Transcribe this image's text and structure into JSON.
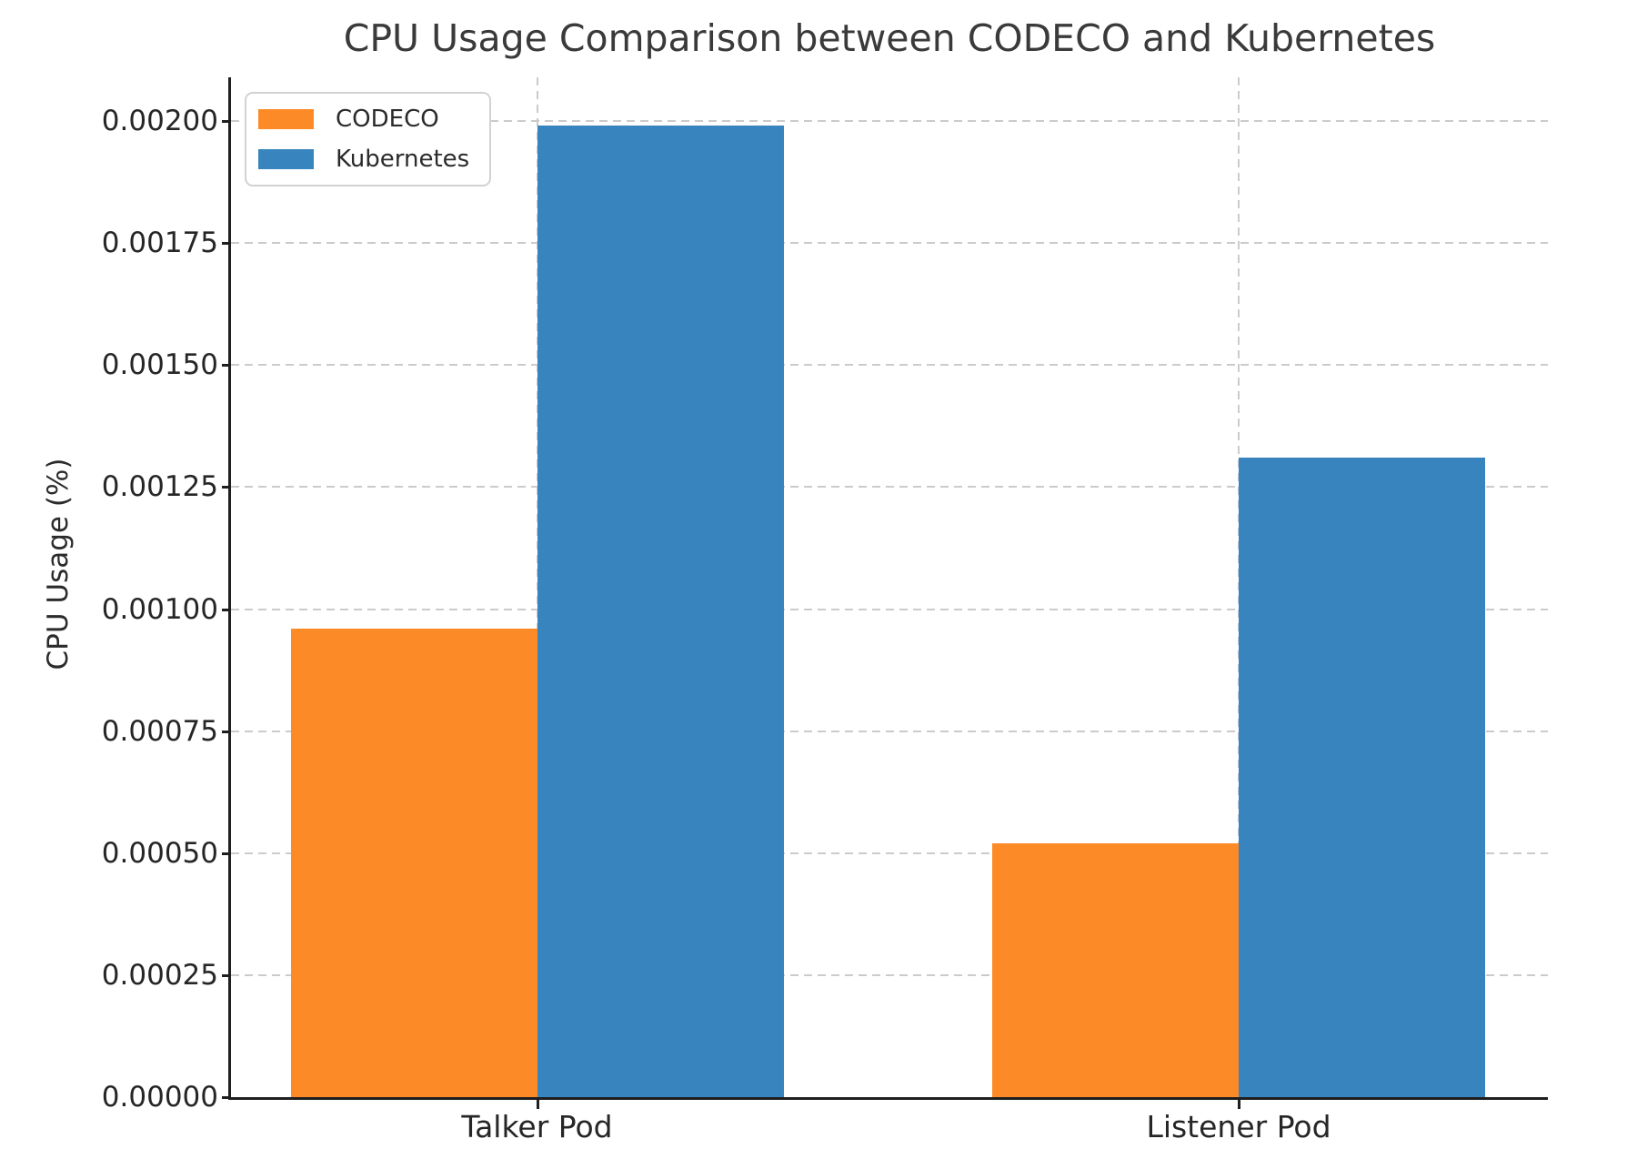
{
  "figure": {
    "background": "#ffffff"
  },
  "chart_data": {
    "type": "bar",
    "title": "CPU Usage Comparison between CODECO and Kubernetes",
    "xlabel": "",
    "ylabel": "CPU Usage (%)",
    "categories": [
      "Talker Pod",
      "Listener Pod"
    ],
    "series": [
      {
        "name": "CODECO",
        "color": "#fc8b27",
        "values": [
          0.00096,
          0.00052
        ]
      },
      {
        "name": "Kubernetes",
        "color": "#3784be",
        "values": [
          0.00199,
          0.00131
        ]
      }
    ],
    "ylim": [
      0,
      0.0020895
    ],
    "yticks": [
      0.0,
      0.00025,
      0.0005,
      0.00075,
      0.001,
      0.00125,
      0.0015,
      0.00175,
      0.002
    ],
    "ytick_labels": [
      "0.00000",
      "0.00025",
      "0.00050",
      "0.00075",
      "0.00100",
      "0.00125",
      "0.00150",
      "0.00175",
      "0.00200"
    ],
    "grid": true,
    "grid_style": "dashed",
    "grid_color": "#cbcbcb",
    "axis_color": "#1f1f1f",
    "text_color": "#262626",
    "legend_position": "upper left"
  }
}
